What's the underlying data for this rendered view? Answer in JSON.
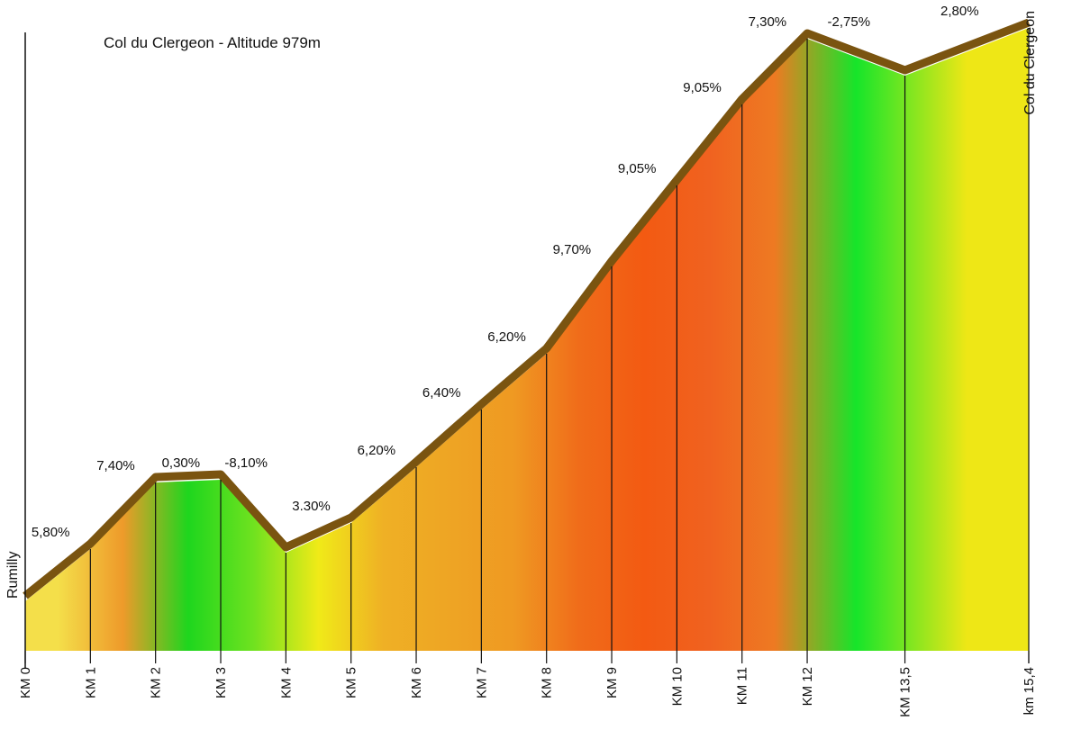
{
  "chart_data": {
    "type": "area",
    "title": "Col du Clergeon - Altitude 979m",
    "start_label": "Rumilly",
    "summit_label": "Col du Clergeon",
    "km_labels": [
      "KM 0",
      "KM 1",
      "KM 2",
      "KM 3",
      "KM 4",
      "KM 5",
      "KM 6",
      "KM 7",
      "KM 8",
      "KM 9",
      "KM 10",
      "KM 11",
      "KM 12",
      "KM 13,5",
      "km 15,4"
    ],
    "km": [
      0,
      1,
      2,
      3,
      4,
      5,
      6,
      7,
      8,
      9,
      10,
      11,
      12,
      13.5,
      15.4
    ],
    "profile_relative_height": [
      0,
      58,
      132,
      135,
      54,
      87,
      149,
      213,
      275,
      372,
      462,
      552,
      625,
      584,
      637
    ],
    "segments": [
      {
        "grade": "5,80%",
        "color": "#f4df4a"
      },
      {
        "grade": "7,40%",
        "color": "#ee9a2a"
      },
      {
        "grade": "0,30%",
        "color": "#1ed61e"
      },
      {
        "grade": "-8,10%",
        "color": "#6fe21f"
      },
      {
        "grade": "3.30%",
        "color": "#f0ea18"
      },
      {
        "grade": "6,20%",
        "color": "#efb025"
      },
      {
        "grade": "6,40%",
        "color": "#eea524"
      },
      {
        "grade": "6,20%",
        "color": "#ef9922"
      },
      {
        "grade": "9,70%",
        "color": "#f06c1a"
      },
      {
        "grade": "9,05%",
        "color": "#f35a12"
      },
      {
        "grade": "9,05%",
        "color": "#f06220"
      },
      {
        "grade": "7,30%",
        "color": "#ee7a22"
      },
      {
        "grade": "-2,75%",
        "color": "#16e52a"
      },
      {
        "grade": "2,80%",
        "color": "#eee716"
      }
    ],
    "colors": {
      "ridge": "#7a5410",
      "axis": "#111111"
    }
  }
}
